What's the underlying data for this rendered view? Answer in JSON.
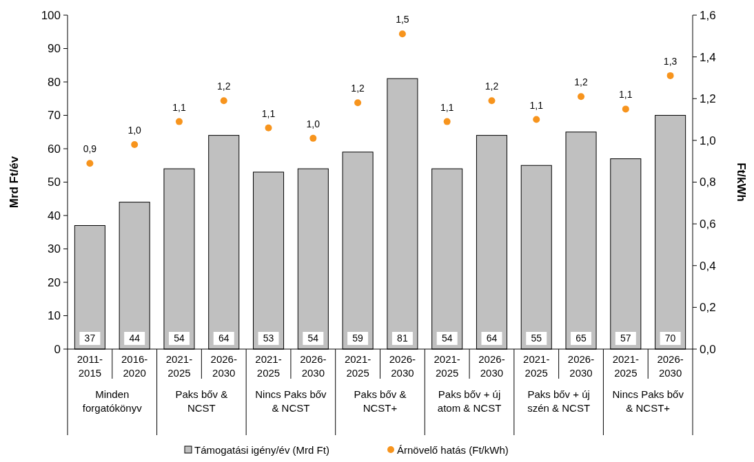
{
  "chart_data": {
    "type": "bar",
    "ylabel": "Mrd Ft/év",
    "y2label": "Ft/kWh",
    "categories": [
      "2011-2015",
      "2016-2020",
      "2021-2025",
      "2026-2030",
      "2021-2025",
      "2026-2030",
      "2021-2025",
      "2026-2030",
      "2021-2025",
      "2026-2030",
      "2021-2025",
      "2026-2030",
      "2021-2025",
      "2026-2030"
    ],
    "series": [
      {
        "name": "Támogatási igény/év (Mrd Ft)",
        "color": "#c0c0c0",
        "values": [
          37,
          44,
          54,
          64,
          53,
          54,
          59,
          81,
          54,
          64,
          55,
          65,
          57,
          70
        ],
        "data_labels": true
      },
      {
        "name": "Árnövelő hatás (Ft/kWh)",
        "type": "scatter",
        "axis": "y2",
        "color": "#f7941d",
        "marker": "circle",
        "values": [
          0.89,
          0.98,
          1.09,
          1.19,
          1.06,
          1.01,
          1.18,
          1.51,
          1.09,
          1.19,
          1.1,
          1.21,
          1.15,
          1.31
        ],
        "value_labels": [
          "0,9",
          "1,0",
          "1,1",
          "1,2",
          "1,1",
          "1,0",
          "1,2",
          "1,5",
          "1,1",
          "1,2",
          "1,1",
          "1,2",
          "1,1",
          "1,3"
        ]
      }
    ],
    "annotations": [
      "Minden forgatókönyv",
      "Paks bőv & NCST",
      "Nincs Paks bőv & NCST",
      "Paks bőv & NCST+",
      "Paks bőv + új atom & NCST",
      "Paks bőv + új szén & NCST",
      "Nincs Paks bőv & NCST+"
    ],
    "ylim": [
      0,
      100
    ],
    "yticks": [
      0,
      10,
      20,
      30,
      40,
      50,
      60,
      70,
      80,
      90,
      100
    ],
    "y2lim": [
      0,
      1.6
    ],
    "y2ticks": [
      {
        "value": 0,
        "label": "0,0"
      },
      {
        "value": 0.2,
        "label": "0,2"
      },
      {
        "value": 0.4,
        "label": "0,4"
      },
      {
        "value": 0.6,
        "label": "0,6"
      },
      {
        "value": 0.8,
        "label": "0,8"
      },
      {
        "value": 1,
        "label": "1,0"
      },
      {
        "value": 1.2,
        "label": "1,2"
      },
      {
        "value": 1.4,
        "label": "1,4"
      },
      {
        "value": 1.6,
        "label": "1,6"
      }
    ],
    "grid": false,
    "legend": "bottom"
  }
}
